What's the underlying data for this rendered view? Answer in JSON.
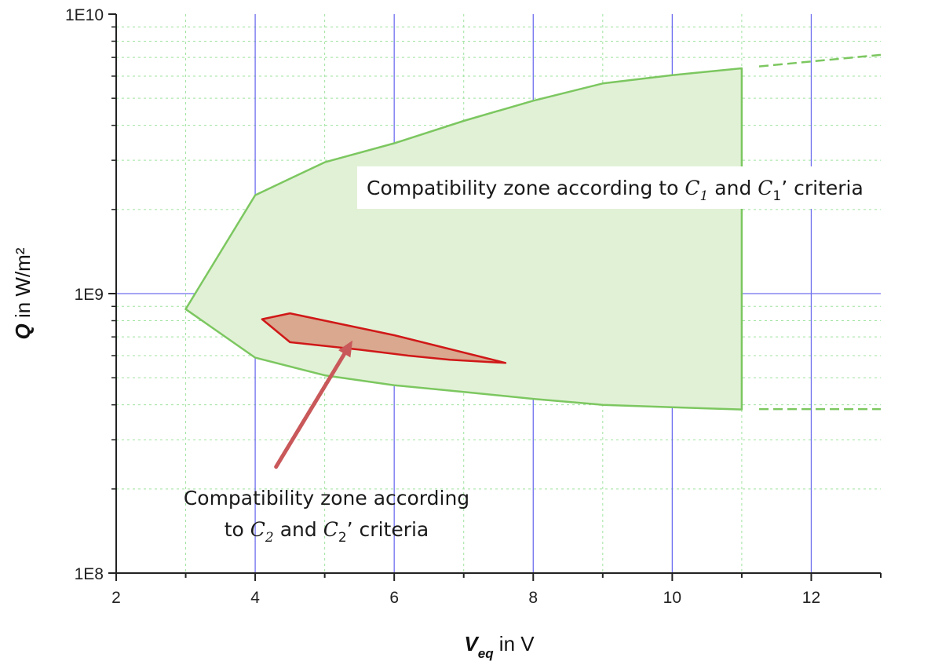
{
  "chart_data": {
    "type": "area",
    "xlim": [
      2,
      13
    ],
    "ylim": [
      100000000,
      10000000000
    ],
    "y_scale": "log",
    "x_ticks": [
      2,
      4,
      6,
      8,
      10,
      12
    ],
    "x_tick_labels": [
      "2",
      "4",
      "6",
      "8",
      "10",
      "12"
    ],
    "y_ticks": [
      100000000,
      1000000000,
      10000000000
    ],
    "y_tick_labels": [
      "1E8",
      "1E9",
      "1E10"
    ],
    "xlabel": {
      "main": "V",
      "sub": "eq",
      "rest": " in V"
    },
    "ylabel": {
      "main": "Q",
      "rest": " in W/m²"
    },
    "grid": true,
    "colors": {
      "major_grid": "#6f6fef",
      "minor_grid": "#9fe39f",
      "zone1_fill": "#e1f1d6",
      "zone1_line": "#7cc760",
      "zone2_fill": "#d9a88e",
      "zone2_line": "#d01818",
      "arrow": "#c9585a"
    },
    "zones": [
      {
        "id": "zone1",
        "points": [
          [
            3.0,
            880000000
          ],
          [
            4.0,
            2250000000
          ],
          [
            5.0,
            2950000000
          ],
          [
            6.0,
            3450000000
          ],
          [
            7.0,
            4150000000
          ],
          [
            8.0,
            4900000000
          ],
          [
            9.0,
            5650000000
          ],
          [
            10.0,
            6050000000
          ],
          [
            11.0,
            6400000000
          ],
          [
            11.0,
            385000000
          ],
          [
            10.0,
            392000000
          ],
          [
            9.0,
            400000000
          ],
          [
            8.0,
            420000000
          ],
          [
            7.0,
            445000000
          ],
          [
            6.0,
            470000000
          ],
          [
            5.0,
            510000000
          ],
          [
            4.0,
            590000000
          ]
        ],
        "extension_upper": [
          [
            11.25,
            6500000000
          ],
          [
            13.0,
            7150000000
          ]
        ],
        "extension_lower": [
          [
            11.25,
            386000000
          ],
          [
            13.0,
            386000000
          ]
        ]
      },
      {
        "id": "zone2",
        "points": [
          [
            4.1,
            810000000
          ],
          [
            4.5,
            850000000
          ],
          [
            6.0,
            710000000
          ],
          [
            7.6,
            565000000
          ],
          [
            6.8,
            580000000
          ],
          [
            6.2,
            600000000
          ],
          [
            5.5,
            630000000
          ],
          [
            4.5,
            670000000
          ]
        ]
      }
    ],
    "annotations": [
      {
        "id": "zone1-label",
        "lines": [
          [
            {
              "t": "Compatibility zone according to ",
              "it": false
            },
            {
              "t": "C",
              "it": true
            },
            {
              "t": "1",
              "it": true,
              "sub": true
            },
            {
              "t": " and ",
              "it": false
            },
            {
              "t": "C",
              "it": true
            },
            {
              "t": "1",
              "it": false,
              "sub": true
            },
            {
              "t": "’ criteria",
              "it": false
            }
          ]
        ]
      },
      {
        "id": "zone2-label",
        "lines": [
          [
            {
              "t": "Compatibility zone according",
              "it": false
            }
          ],
          [
            {
              "t": "to ",
              "it": false
            },
            {
              "t": "C",
              "it": true
            },
            {
              "t": "2",
              "it": true,
              "sub": true
            },
            {
              "t": " and ",
              "it": false
            },
            {
              "t": "C",
              "it": true
            },
            {
              "t": "2",
              "it": false,
              "sub": true
            },
            {
              "t": "’ criteria",
              "it": false
            }
          ]
        ]
      }
    ],
    "arrow": {
      "from": [
        4.3,
        240000000
      ],
      "to": [
        5.4,
        680000000
      ]
    }
  }
}
